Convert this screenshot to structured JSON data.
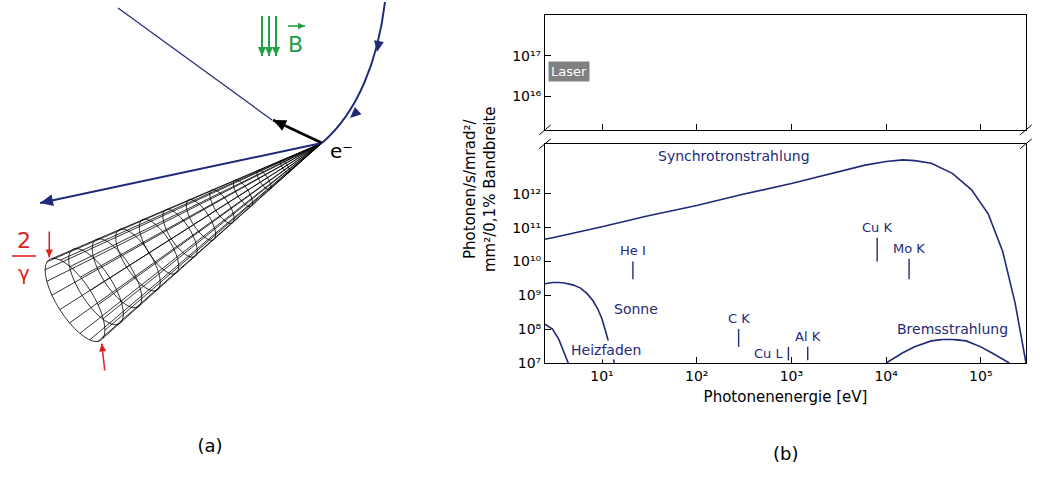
{
  "diagram": {
    "panel": "(a)",
    "field_label": "B",
    "particle_label": "e⁻",
    "opening_angle": {
      "numerator": "2",
      "denominator": "γ"
    }
  },
  "chart_data": {
    "panel": "(b)",
    "type": "line",
    "xlabel": "Photonenenergie [eV]",
    "ylabel": [
      "Photonen/s/mrad²/",
      "mm²/0,1% Bandbreite"
    ],
    "log": true,
    "grid": false,
    "color": "#1f2a78",
    "xlim": [
      2.5,
      300000
    ],
    "xticks": [
      {
        "value": 10,
        "label": "10¹"
      },
      {
        "value": 100,
        "label": "10²"
      },
      {
        "value": 1000,
        "label": "10³"
      },
      {
        "value": 10000,
        "label": "10⁴"
      },
      {
        "value": 100000,
        "label": "10⁵"
      }
    ],
    "ylim": [
      10000000.0,
      30000000000000.0
    ],
    "yticks": [
      {
        "value": 10000000.0,
        "label": "10⁷"
      },
      {
        "value": 100000000.0,
        "label": "10⁸"
      },
      {
        "value": 1000000000.0,
        "label": "10⁹"
      },
      {
        "value": 10000000000.0,
        "label": "10¹⁰"
      },
      {
        "value": 100000000000.0,
        "label": "10¹¹"
      },
      {
        "value": 1000000000000.0,
        "label": "10¹²"
      }
    ],
    "y2lim": [
      1500000000000000.0,
      1e+18
    ],
    "y2ticks": [
      {
        "value": 1e+16,
        "label": "10¹⁶"
      },
      {
        "value": 1e+17,
        "label": "10¹⁷"
      }
    ],
    "series": [
      {
        "name": "Synchrotronstrahlung",
        "color": "#1f2a78",
        "x": [
          2.5,
          3,
          10,
          30,
          100,
          300,
          1000,
          3000,
          6000,
          10000,
          15000,
          20000,
          30000,
          50000,
          80000,
          120000,
          170000,
          230000,
          300000
        ],
        "values": [
          45000000000.0,
          50000000000.0,
          106000000000.0,
          220000000000.0,
          450000000000.0,
          950000000000.0,
          2000000000000.0,
          4200000000000.0,
          7000000000000.0,
          9000000000000.0,
          10000000000000.0,
          9500000000000.0,
          8000000000000.0,
          4000000000000.0,
          1300000000000.0,
          250000000000.0,
          20000000000.0,
          600000000.0,
          10000000.0
        ],
        "label_at": [
          250,
          13000000000000.0
        ]
      },
      {
        "name": "Sonne",
        "color": "#1f2a78",
        "x": [
          2.5,
          3,
          3.5,
          4,
          5,
          6,
          7,
          8,
          9,
          10,
          11,
          12,
          13,
          13.5
        ],
        "values": [
          2200000000.0,
          2400000000.0,
          2400000000.0,
          2300000000.0,
          2000000000.0,
          1600000000.0,
          1100000000.0,
          700000000.0,
          400000000.0,
          200000000.0,
          80000000.0,
          35000000.0,
          14000000.0,
          10000000.0
        ],
        "label_at": [
          23,
          400000000.0
        ]
      },
      {
        "name": "Heizfaden",
        "color": "#1f2a78",
        "x": [
          2.5,
          3,
          3.5,
          4,
          4.4
        ],
        "values": [
          140000000.0,
          100000000.0,
          50000000.0,
          20000000.0,
          10000000.0
        ],
        "label_at": [
          11,
          25000000.0
        ]
      },
      {
        "name": "Bremsstrahlung",
        "color": "#1f2a78",
        "x": [
          10000,
          15000,
          20000,
          30000,
          40000,
          50000,
          70000,
          100000,
          130000,
          160000,
          200000
        ],
        "values": [
          10000000.0,
          20000000.0,
          30000000.0,
          45000000.0,
          50000000.0,
          50000000.0,
          45000000.0,
          30000000.0,
          20000000.0,
          14000000.0,
          10000000.0
        ],
        "label_at": [
          50000,
          100000000.0
        ]
      }
    ],
    "emission_lines": [
      {
        "label": "He I",
        "x": 21.2,
        "values": [
          3000000000.0,
          10000000000.0
        ]
      },
      {
        "label": "C K",
        "x": 277,
        "values": [
          30000000.0,
          100000000.0
        ]
      },
      {
        "label": "Cu L",
        "x": 930,
        "values": [
          12000000.0,
          30000000.0
        ],
        "label_side": "left"
      },
      {
        "label": "Al K",
        "x": 1487,
        "values": [
          12000000.0,
          30000000.0
        ]
      },
      {
        "label": "Cu K",
        "x": 8048,
        "values": [
          10000000000.0,
          50000000000.0
        ]
      },
      {
        "label": "Mo K",
        "x": 17480,
        "values": [
          3000000000.0,
          12000000000.0
        ]
      }
    ],
    "annotations": [
      {
        "text": "Laser",
        "x": 2.7,
        "y": 4e+16,
        "axis": "y2",
        "color": "#808080"
      }
    ]
  }
}
